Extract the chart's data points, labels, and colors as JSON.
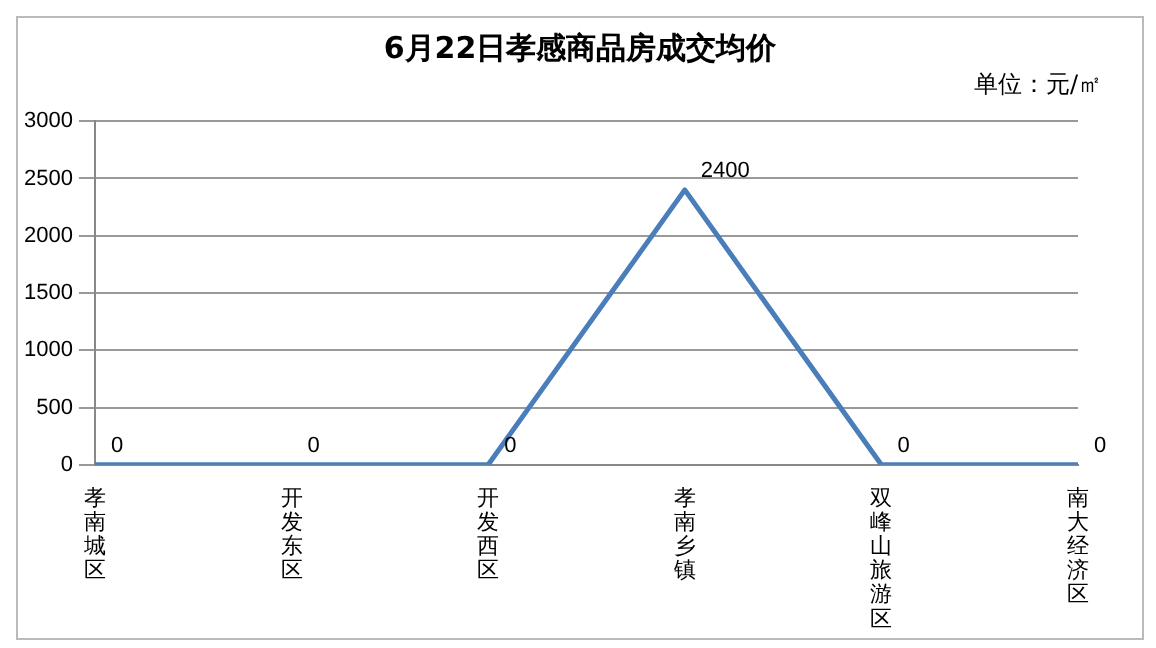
{
  "chart_data": {
    "type": "line",
    "title": "6月22日孝感商品房成交均价",
    "subtitle": "单位：元/㎡",
    "categories": [
      "孝南城区",
      "开发东区",
      "开发西区",
      "孝南乡镇",
      "双峰山旅游区",
      "南大经济区"
    ],
    "series": [
      {
        "color": "#4a7ebb",
        "values": [
          0,
          0,
          0,
          2400,
          0,
          0
        ]
      }
    ],
    "ylim": [
      0,
      3000
    ],
    "yticks": [
      0,
      500,
      1000,
      1500,
      2000,
      2500,
      3000
    ],
    "grid": "y",
    "legend": false,
    "marker": "none",
    "line_style": "solid",
    "data_labels": true
  }
}
